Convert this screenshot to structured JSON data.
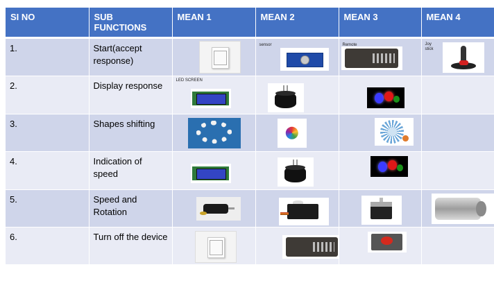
{
  "table": {
    "headers": [
      "SI NO",
      "SUB FUNCTIONS",
      "MEAN 1",
      "MEAN 2",
      "MEAN 3",
      "MEAN 4"
    ],
    "rows": [
      {
        "no": "1.",
        "function": "Start(accept response)",
        "means": [
          "switch-image",
          "touch-sensor-image",
          "remote-image",
          "joystick-image"
        ],
        "captions": [
          "",
          "sensor",
          "Remote",
          "Joy stick"
        ]
      },
      {
        "no": "2.",
        "function": "Display response",
        "means": [
          "lcd-screen-image",
          "buzzer-image",
          "rgb-led-image",
          ""
        ],
        "captions": [
          "LED SCREEN",
          "",
          "",
          ""
        ]
      },
      {
        "no": "3.",
        "function": "Shapes shifting",
        "means": [
          "chain-shape-image",
          "color-burst-image",
          "gear-image",
          ""
        ]
      },
      {
        "no": "4.",
        "function": "Indication of speed",
        "means": [
          "lcd-screen-image",
          "buzzer-image",
          "rgb-led-image",
          ""
        ]
      },
      {
        "no": "5.",
        "function": "Speed and Rotation",
        "means": [
          "bldc-motor-image",
          "servo-motor-image",
          "stepper-motor-image",
          "dc-motor-image"
        ]
      },
      {
        "no": "6.",
        "function": "Turn off the device",
        "means": [
          "switch-image",
          "remote-image",
          "emergency-stop-image",
          ""
        ]
      }
    ]
  },
  "colors": {
    "header_bg": "#4472c4",
    "row_odd": "#cfd5ea",
    "row_even": "#e9ebf5"
  }
}
